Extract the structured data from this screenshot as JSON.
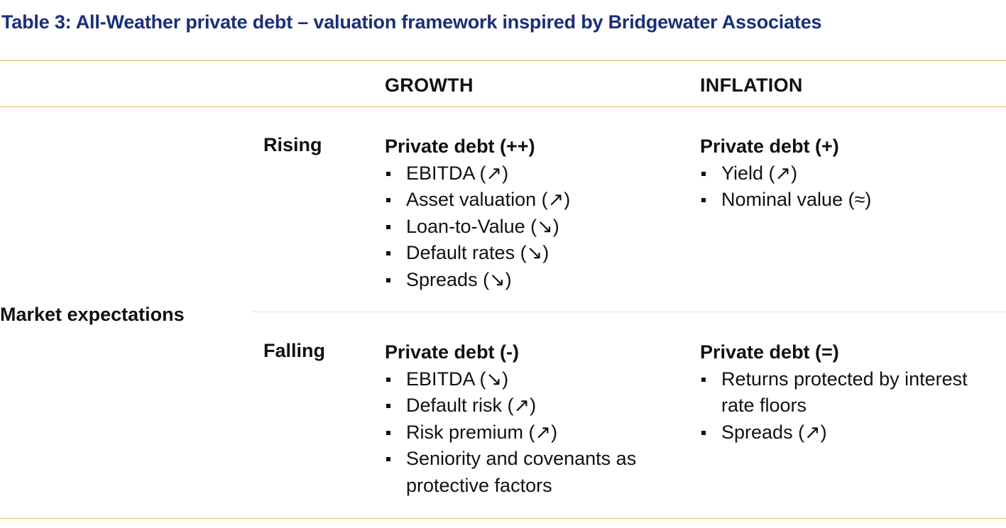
{
  "title": "Table 3: All-Weather private debt – valuation framework inspired by Bridgewater Associates",
  "columns": {
    "growth": "GROWTH",
    "inflation": "INFLATION"
  },
  "row_group_label": "Market expectations",
  "rows": [
    {
      "label": "Rising",
      "growth": {
        "title": "Private debt (++)",
        "items": [
          "EBITDA (↗)",
          "Asset valuation (↗)",
          "Loan-to-Value (↘)",
          "Default rates (↘)",
          "Spreads (↘)"
        ]
      },
      "inflation": {
        "title": "Private debt (+)",
        "items": [
          "Yield (↗)",
          "Nominal value (≈)"
        ]
      }
    },
    {
      "label": "Falling",
      "growth": {
        "title": "Private debt (-)",
        "items": [
          "EBITDA (↘)",
          "Default risk (↗)",
          "Risk premium (↗)",
          "Seniority and covenants as protective factors"
        ]
      },
      "inflation": {
        "title": "Private debt (=)",
        "items": [
          "Returns protected by interest rate floors",
          "Spreads (↗)"
        ]
      }
    }
  ],
  "colors": {
    "title": "#1a2f7a",
    "rule": "#e3b45f",
    "divider": "#e0e0e0",
    "text": "#111111"
  }
}
